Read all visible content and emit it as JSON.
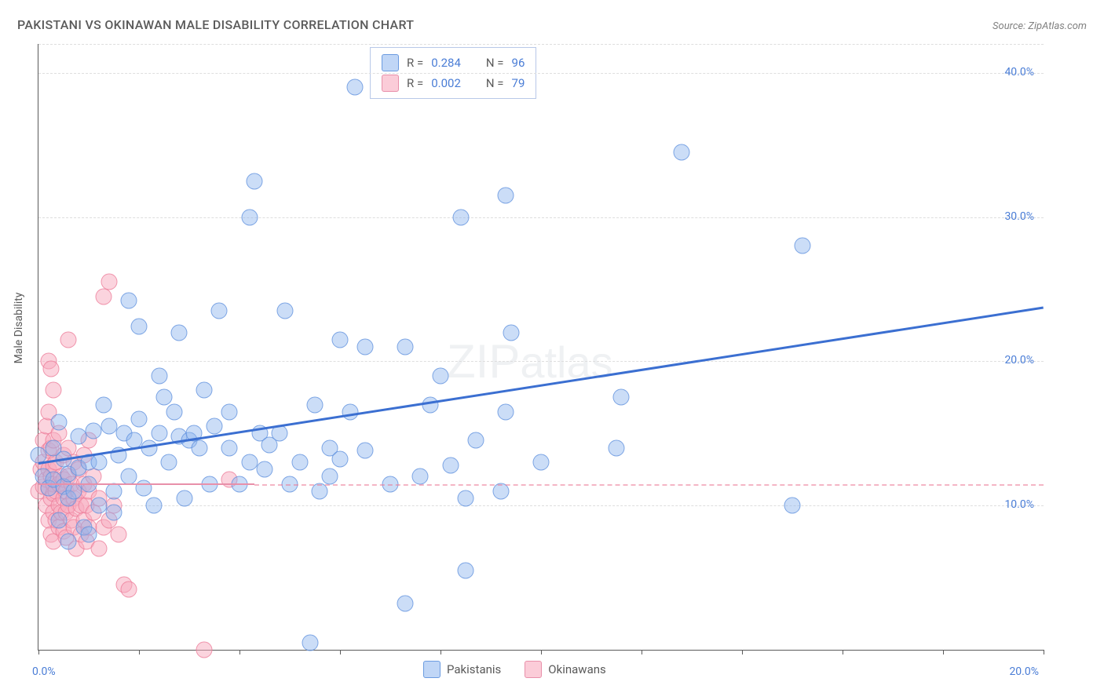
{
  "title": "PAKISTANI VS OKINAWAN MALE DISABILITY CORRELATION CHART",
  "source": "Source: ZipAtlas.com",
  "y_axis_label": "Male Disability",
  "watermark_text": "ZIPatlas",
  "chart": {
    "type": "scatter",
    "xlim": [
      0,
      20
    ],
    "ylim": [
      0,
      42
    ],
    "y_ticks": [
      10,
      20,
      30,
      40
    ],
    "y_tick_labels": [
      "10.0%",
      "20.0%",
      "30.0%",
      "40.0%"
    ],
    "x_tick_labels": {
      "start": "0.0%",
      "end": "20.0%"
    },
    "x_ticks": [
      0,
      2,
      4,
      6,
      8,
      10,
      12,
      14,
      16,
      18,
      20
    ],
    "gridline_positions_y": [
      10,
      20,
      30,
      40,
      42
    ],
    "background_color": "#ffffff",
    "grid_color": "#dedede",
    "axis_color": "#5a5a5a",
    "y_tick_label_color": "#4a7dd6",
    "series": {
      "pakistanis": {
        "label": "Pakistanis",
        "marker_color_fill": "rgba(140,180,238,0.45)",
        "marker_color_stroke": "rgba(90,140,220,0.7)",
        "marker_size": 19,
        "R": "0.284",
        "N": "96",
        "trend": {
          "x1": 0,
          "y1": 13.0,
          "x2": 20,
          "y2": 23.8,
          "color": "#3b6fd1",
          "width": 3
        },
        "points": [
          [
            0.0,
            13.5
          ],
          [
            0.1,
            12.0
          ],
          [
            0.2,
            11.2
          ],
          [
            0.3,
            11.8
          ],
          [
            0.3,
            14.0
          ],
          [
            0.4,
            15.8
          ],
          [
            0.5,
            11.3
          ],
          [
            0.5,
            13.2
          ],
          [
            0.6,
            10.5
          ],
          [
            0.6,
            12.2
          ],
          [
            0.7,
            11.0
          ],
          [
            0.8,
            12.6
          ],
          [
            0.8,
            14.8
          ],
          [
            0.9,
            8.5
          ],
          [
            1.0,
            13.0
          ],
          [
            1.0,
            11.5
          ],
          [
            1.1,
            15.2
          ],
          [
            1.2,
            10.0
          ],
          [
            1.2,
            13.0
          ],
          [
            1.3,
            17.0
          ],
          [
            1.4,
            15.5
          ],
          [
            1.5,
            9.5
          ],
          [
            1.5,
            11.0
          ],
          [
            1.6,
            13.5
          ],
          [
            1.7,
            15.0
          ],
          [
            1.8,
            24.2
          ],
          [
            1.8,
            12.0
          ],
          [
            1.9,
            14.5
          ],
          [
            2.0,
            22.4
          ],
          [
            2.0,
            16.0
          ],
          [
            2.1,
            11.2
          ],
          [
            2.2,
            14.0
          ],
          [
            2.3,
            10.0
          ],
          [
            2.4,
            15.0
          ],
          [
            2.4,
            19.0
          ],
          [
            2.5,
            17.5
          ],
          [
            2.6,
            13.0
          ],
          [
            2.7,
            16.5
          ],
          [
            2.8,
            22.0
          ],
          [
            2.8,
            14.8
          ],
          [
            2.9,
            10.5
          ],
          [
            3.0,
            14.5
          ],
          [
            3.1,
            15.0
          ],
          [
            3.2,
            14.0
          ],
          [
            3.3,
            18.0
          ],
          [
            3.4,
            11.5
          ],
          [
            3.5,
            15.5
          ],
          [
            3.6,
            23.5
          ],
          [
            3.8,
            14.0
          ],
          [
            3.8,
            16.5
          ],
          [
            4.0,
            11.5
          ],
          [
            4.2,
            30.0
          ],
          [
            4.2,
            13.0
          ],
          [
            4.3,
            32.5
          ],
          [
            4.4,
            15.0
          ],
          [
            4.5,
            12.5
          ],
          [
            4.6,
            14.2
          ],
          [
            4.8,
            15.0
          ],
          [
            4.9,
            23.5
          ],
          [
            5.0,
            11.5
          ],
          [
            5.2,
            13.0
          ],
          [
            5.4,
            0.5
          ],
          [
            5.5,
            17.0
          ],
          [
            5.6,
            11.0
          ],
          [
            5.8,
            14.0
          ],
          [
            5.8,
            12.0
          ],
          [
            6.0,
            21.5
          ],
          [
            6.0,
            13.2
          ],
          [
            6.2,
            16.5
          ],
          [
            6.3,
            39.0
          ],
          [
            6.5,
            13.8
          ],
          [
            6.5,
            21.0
          ],
          [
            7.0,
            11.5
          ],
          [
            7.3,
            21.0
          ],
          [
            7.3,
            3.2
          ],
          [
            7.6,
            12.0
          ],
          [
            7.8,
            17.0
          ],
          [
            8.0,
            19.0
          ],
          [
            8.2,
            12.8
          ],
          [
            8.4,
            30.0
          ],
          [
            8.5,
            5.5
          ],
          [
            8.5,
            10.5
          ],
          [
            8.7,
            14.5
          ],
          [
            9.2,
            11.0
          ],
          [
            9.3,
            16.5
          ],
          [
            9.3,
            31.5
          ],
          [
            9.4,
            22.0
          ],
          [
            10.0,
            13.0
          ],
          [
            11.5,
            14.0
          ],
          [
            11.6,
            17.5
          ],
          [
            12.8,
            34.5
          ],
          [
            15.0,
            10.0
          ],
          [
            15.2,
            28.0
          ],
          [
            0.4,
            9.0
          ],
          [
            0.6,
            7.5
          ],
          [
            1.0,
            8.0
          ]
        ]
      },
      "okinawans": {
        "label": "Okinawans",
        "marker_color_fill": "rgba(248,170,190,0.5)",
        "marker_color_stroke": "rgba(235,120,150,0.7)",
        "marker_size": 19,
        "R": "0.002",
        "N": "79",
        "trend": {
          "x1": 0,
          "y1": 11.5,
          "x2": 20,
          "y2": 11.5,
          "color": "#e890aa",
          "dashed": true,
          "width": 2,
          "solid_until_x": 4.3
        },
        "points": [
          [
            0.0,
            11.0
          ],
          [
            0.05,
            12.5
          ],
          [
            0.1,
            11.3
          ],
          [
            0.1,
            13.0
          ],
          [
            0.1,
            14.5
          ],
          [
            0.15,
            10.0
          ],
          [
            0.15,
            11.8
          ],
          [
            0.15,
            15.5
          ],
          [
            0.2,
            9.0
          ],
          [
            0.2,
            11.2
          ],
          [
            0.2,
            12.5
          ],
          [
            0.2,
            13.8
          ],
          [
            0.2,
            16.5
          ],
          [
            0.2,
            20.0
          ],
          [
            0.25,
            8.0
          ],
          [
            0.25,
            10.5
          ],
          [
            0.25,
            12.0
          ],
          [
            0.25,
            14.0
          ],
          [
            0.25,
            19.5
          ],
          [
            0.3,
            7.5
          ],
          [
            0.3,
            9.5
          ],
          [
            0.3,
            10.8
          ],
          [
            0.3,
            11.5
          ],
          [
            0.3,
            12.8
          ],
          [
            0.3,
            14.5
          ],
          [
            0.3,
            18.0
          ],
          [
            0.35,
            9.0
          ],
          [
            0.35,
            11.0
          ],
          [
            0.35,
            13.0
          ],
          [
            0.4,
            8.5
          ],
          [
            0.4,
            10.0
          ],
          [
            0.4,
            11.5
          ],
          [
            0.4,
            15.0
          ],
          [
            0.45,
            9.5
          ],
          [
            0.45,
            12.0
          ],
          [
            0.5,
            8.2
          ],
          [
            0.5,
            10.5
          ],
          [
            0.5,
            11.8
          ],
          [
            0.5,
            13.5
          ],
          [
            0.55,
            7.8
          ],
          [
            0.55,
            9.5
          ],
          [
            0.55,
            11.0
          ],
          [
            0.6,
            10.0
          ],
          [
            0.6,
            12.0
          ],
          [
            0.6,
            14.0
          ],
          [
            0.6,
            21.5
          ],
          [
            0.65,
            9.0
          ],
          [
            0.65,
            11.5
          ],
          [
            0.7,
            8.5
          ],
          [
            0.7,
            10.5
          ],
          [
            0.7,
            13.0
          ],
          [
            0.75,
            7.0
          ],
          [
            0.75,
            9.8
          ],
          [
            0.8,
            11.0
          ],
          [
            0.8,
            12.5
          ],
          [
            0.85,
            8.0
          ],
          [
            0.85,
            10.0
          ],
          [
            0.9,
            9.0
          ],
          [
            0.9,
            11.5
          ],
          [
            0.9,
            13.5
          ],
          [
            0.95,
            7.5
          ],
          [
            0.95,
            10.0
          ],
          [
            1.0,
            8.5
          ],
          [
            1.0,
            11.0
          ],
          [
            1.0,
            14.5
          ],
          [
            1.1,
            9.5
          ],
          [
            1.1,
            12.0
          ],
          [
            1.2,
            7.0
          ],
          [
            1.2,
            10.5
          ],
          [
            1.3,
            8.5
          ],
          [
            1.3,
            24.5
          ],
          [
            1.4,
            9.0
          ],
          [
            1.4,
            25.5
          ],
          [
            1.5,
            10.0
          ],
          [
            1.6,
            8.0
          ],
          [
            1.7,
            4.5
          ],
          [
            1.8,
            4.2
          ],
          [
            3.3,
            0.0
          ],
          [
            3.8,
            11.8
          ]
        ]
      }
    }
  },
  "legend_top": {
    "rows": [
      {
        "swatch": "blue",
        "R_label": "R =",
        "R_val": "0.284",
        "N_label": "N =",
        "N_val": "96"
      },
      {
        "swatch": "pink",
        "R_label": "R =",
        "R_val": "0.002",
        "N_label": "N =",
        "N_val": "79"
      }
    ]
  },
  "legend_bottom": [
    {
      "swatch": "blue",
      "label": "Pakistanis"
    },
    {
      "swatch": "pink",
      "label": "Okinawans"
    }
  ]
}
